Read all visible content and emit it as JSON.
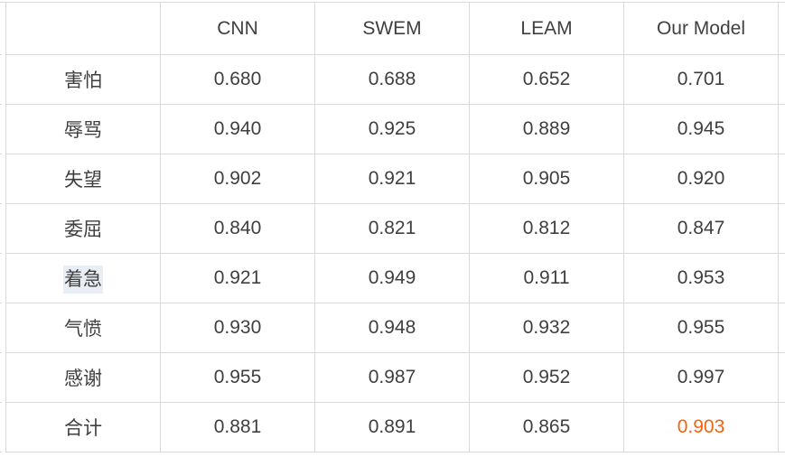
{
  "chart_data": {
    "type": "table",
    "title": "",
    "columns": [
      "",
      "CNN",
      "SWEM",
      "LEAM",
      "Our Model"
    ],
    "rows": [
      {
        "label": "害怕",
        "values": [
          "0.680",
          "0.688",
          "0.652",
          "0.701"
        ]
      },
      {
        "label": "辱骂",
        "values": [
          "0.940",
          "0.925",
          "0.889",
          "0.945"
        ]
      },
      {
        "label": "失望",
        "values": [
          "0.902",
          "0.921",
          "0.905",
          "0.920"
        ]
      },
      {
        "label": "委屈",
        "values": [
          "0.840",
          "0.821",
          "0.812",
          "0.847"
        ]
      },
      {
        "label": "着急",
        "values": [
          "0.921",
          "0.949",
          "0.911",
          "0.953"
        ],
        "label_selected": true
      },
      {
        "label": "气愤",
        "values": [
          "0.930",
          "0.948",
          "0.932",
          "0.955"
        ]
      },
      {
        "label": "感谢",
        "values": [
          "0.955",
          "0.987",
          "0.952",
          "0.997"
        ]
      },
      {
        "label": "合计",
        "values": [
          "0.881",
          "0.891",
          "0.865",
          "0.903"
        ],
        "last_value_accented": true
      }
    ],
    "layout_hints": {
      "grid": "on",
      "header_row": true,
      "accent_cell": "合计 / Our Model"
    }
  },
  "colors": {
    "border": "#d9d9d9",
    "text": "#3f3f3f",
    "accent": "#f7630c",
    "label_highlight_bg": "#e9edf4",
    "background": "#ffffff"
  }
}
